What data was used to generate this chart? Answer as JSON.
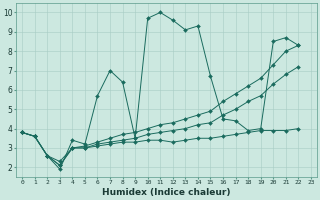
{
  "xlabel": "Humidex (Indice chaleur)",
  "ylabel": "",
  "background_color": "#cce8e0",
  "line_color": "#1a6b5e",
  "xlim": [
    -0.5,
    23.5
  ],
  "ylim": [
    1.5,
    10.5
  ],
  "yticks": [
    2,
    3,
    4,
    5,
    6,
    7,
    8,
    9,
    10
  ],
  "xticks": [
    0,
    1,
    2,
    3,
    4,
    5,
    6,
    7,
    8,
    9,
    10,
    11,
    12,
    13,
    14,
    15,
    16,
    17,
    18,
    19,
    20,
    21,
    22,
    23
  ],
  "series": [
    {
      "x": [
        0,
        1,
        2,
        3,
        4,
        5,
        6,
        7,
        8,
        9,
        10,
        11,
        12,
        13,
        14,
        15,
        16,
        17,
        18,
        19,
        20,
        21,
        22
      ],
      "y": [
        3.8,
        3.6,
        2.6,
        1.9,
        3.4,
        3.2,
        5.7,
        7.0,
        6.4,
        3.5,
        9.7,
        10.0,
        9.6,
        9.1,
        9.3,
        6.7,
        4.5,
        4.4,
        3.9,
        4.0,
        8.5,
        8.7,
        8.3
      ]
    },
    {
      "x": [
        0,
        1,
        2,
        3,
        4,
        5,
        6,
        7,
        8,
        9,
        10,
        11,
        12,
        13,
        14,
        15,
        16,
        17,
        18,
        19,
        20,
        21,
        22
      ],
      "y": [
        3.8,
        3.6,
        2.6,
        2.3,
        3.0,
        3.0,
        3.1,
        3.2,
        3.3,
        3.3,
        3.4,
        3.4,
        3.3,
        3.4,
        3.5,
        3.5,
        3.6,
        3.7,
        3.8,
        3.9,
        3.9,
        3.9,
        4.0
      ]
    },
    {
      "x": [
        0,
        1,
        2,
        3,
        4,
        5,
        6,
        7,
        8,
        9,
        10,
        11,
        12,
        13,
        14,
        15,
        16,
        17,
        18,
        19,
        20,
        21,
        22
      ],
      "y": [
        3.8,
        3.6,
        2.6,
        2.1,
        3.0,
        3.1,
        3.3,
        3.5,
        3.7,
        3.8,
        4.0,
        4.2,
        4.3,
        4.5,
        4.7,
        4.9,
        5.4,
        5.8,
        6.2,
        6.6,
        7.3,
        8.0,
        8.3
      ]
    },
    {
      "x": [
        0,
        1,
        2,
        3,
        4,
        5,
        6,
        7,
        8,
        9,
        10,
        11,
        12,
        13,
        14,
        15,
        16,
        17,
        18,
        19,
        20,
        21,
        22
      ],
      "y": [
        3.8,
        3.6,
        2.6,
        2.1,
        3.0,
        3.0,
        3.2,
        3.3,
        3.4,
        3.5,
        3.7,
        3.8,
        3.9,
        4.0,
        4.2,
        4.3,
        4.7,
        5.0,
        5.4,
        5.7,
        6.3,
        6.8,
        7.2
      ]
    }
  ]
}
